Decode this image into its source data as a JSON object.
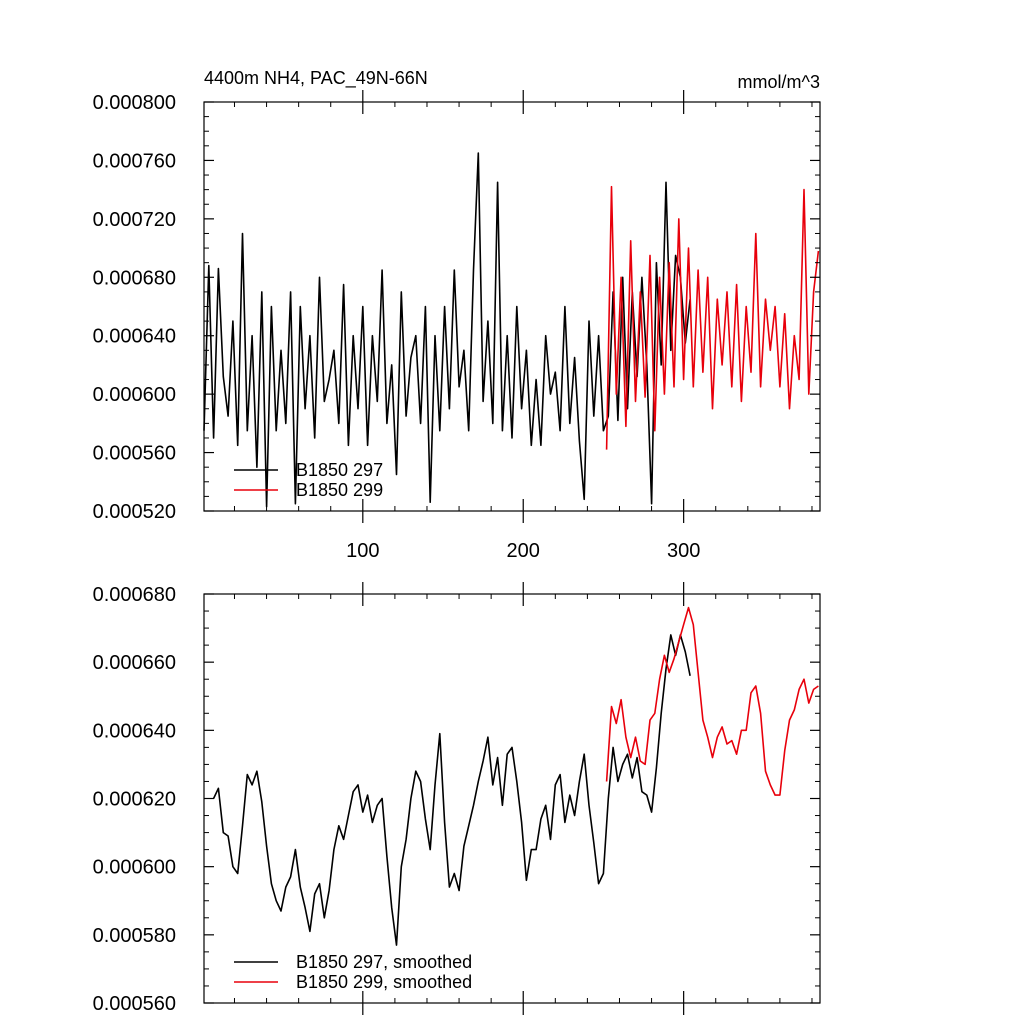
{
  "colors": {
    "black": "#000000",
    "red": "#e8000b",
    "background": "#ffffff"
  },
  "chart_data": [
    {
      "type": "line",
      "title": "4400m NH4, PAC_49N-66N",
      "units": "mmol/m^3",
      "xlabel": "",
      "ylabel": "",
      "xlim": [
        1,
        385
      ],
      "ylim": [
        0.00052,
        0.0008
      ],
      "xticks": [
        100,
        200,
        300
      ],
      "xtick_labels": [
        "100",
        "200",
        "300"
      ],
      "yticks": [
        0.00052,
        0.00056,
        0.0006,
        0.00064,
        0.00068,
        0.00072,
        0.00076,
        0.0008
      ],
      "ytick_labels": [
        "0.000520",
        "0.000560",
        "0.000600",
        "0.000640",
        "0.000680",
        "0.000720",
        "0.000760",
        "0.000800"
      ],
      "legend_position": "bottom-left",
      "series": [
        {
          "name": "B1850 297",
          "color": "#000000",
          "x": [
            1,
            4,
            7,
            10,
            13,
            16,
            19,
            22,
            25,
            28,
            31,
            34,
            37,
            40,
            43,
            46,
            49,
            52,
            55,
            58,
            61,
            64,
            67,
            70,
            73,
            76,
            79,
            82,
            85,
            88,
            91,
            94,
            97,
            100,
            103,
            106,
            109,
            112,
            115,
            118,
            121,
            124,
            127,
            130,
            133,
            136,
            139,
            142,
            145,
            148,
            151,
            154,
            157,
            160,
            163,
            166,
            169,
            172,
            175,
            178,
            181,
            184,
            187,
            190,
            193,
            196,
            199,
            202,
            205,
            208,
            211,
            214,
            217,
            220,
            223,
            226,
            229,
            232,
            235,
            238,
            241,
            244,
            247,
            250,
            253,
            256,
            259,
            262,
            265,
            268,
            271,
            274,
            277,
            280,
            283,
            286,
            289,
            292,
            295,
            298,
            301,
            304
          ],
          "values": [
            0.000575,
            0.000688,
            0.00057,
            0.000686,
            0.000612,
            0.000585,
            0.00065,
            0.000565,
            0.00071,
            0.000575,
            0.00064,
            0.00055,
            0.00067,
            0.000523,
            0.00066,
            0.000575,
            0.00063,
            0.00058,
            0.00067,
            0.000525,
            0.00066,
            0.00059,
            0.00064,
            0.00057,
            0.00068,
            0.000595,
            0.00061,
            0.00063,
            0.00058,
            0.000675,
            0.000565,
            0.00064,
            0.00059,
            0.00066,
            0.000565,
            0.00064,
            0.000595,
            0.000685,
            0.00058,
            0.00062,
            0.000545,
            0.00067,
            0.000585,
            0.000625,
            0.00064,
            0.00058,
            0.00066,
            0.000526,
            0.00064,
            0.000575,
            0.00066,
            0.00059,
            0.000685,
            0.000605,
            0.00063,
            0.000575,
            0.000685,
            0.000765,
            0.000595,
            0.00065,
            0.00058,
            0.000745,
            0.000575,
            0.00064,
            0.00057,
            0.00066,
            0.00059,
            0.00063,
            0.000565,
            0.00061,
            0.000565,
            0.00064,
            0.0006,
            0.000615,
            0.000575,
            0.00066,
            0.00058,
            0.000625,
            0.000568,
            0.000528,
            0.00065,
            0.000585,
            0.00064,
            0.000575,
            0.000585,
            0.00067,
            0.000582,
            0.00068,
            0.00059,
            0.00067,
            0.000612,
            0.00068,
            0.00062,
            0.000525,
            0.00069,
            0.00062,
            0.000745,
            0.00063,
            0.000695,
            0.00068,
            0.000635,
            0.000665
          ]
        },
        {
          "name": "B1850 299",
          "color": "#e8000b",
          "x": [
            252,
            255,
            258,
            261,
            264,
            267,
            270,
            273,
            276,
            279,
            282,
            285,
            288,
            291,
            294,
            297,
            300,
            303,
            306,
            309,
            312,
            315,
            318,
            321,
            324,
            327,
            330,
            333,
            336,
            339,
            342,
            345,
            348,
            351,
            354,
            357,
            360,
            363,
            366,
            369,
            372,
            375,
            378,
            381,
            384
          ],
          "values": [
            0.000562,
            0.000742,
            0.0006,
            0.00068,
            0.000578,
            0.000705,
            0.000595,
            0.00067,
            0.000598,
            0.000695,
            0.000575,
            0.00068,
            0.0006,
            0.00069,
            0.000605,
            0.00072,
            0.00061,
            0.0007,
            0.000605,
            0.000685,
            0.000615,
            0.00068,
            0.00059,
            0.000665,
            0.00062,
            0.00067,
            0.000605,
            0.000675,
            0.000595,
            0.00066,
            0.000615,
            0.00071,
            0.000605,
            0.000665,
            0.00063,
            0.00066,
            0.000605,
            0.000655,
            0.00059,
            0.00064,
            0.00061,
            0.00074,
            0.0006,
            0.00067,
            0.000698
          ]
        }
      ]
    },
    {
      "type": "line",
      "title": "",
      "xlabel": "",
      "ylabel": "",
      "xlim": [
        1,
        385
      ],
      "ylim": [
        0.00056,
        0.00068
      ],
      "xticks": [
        100,
        200,
        300
      ],
      "yticks": [
        0.00056,
        0.00058,
        0.0006,
        0.00062,
        0.00064,
        0.00066,
        0.00068
      ],
      "ytick_labels": [
        "0.000560",
        "0.000580",
        "0.000600",
        "0.000620",
        "0.000640",
        "0.000660",
        "0.000680"
      ],
      "legend_position": "bottom-left",
      "series": [
        {
          "name": "B1850 297, smoothed",
          "color": "#000000",
          "x": [
            7,
            10,
            13,
            16,
            19,
            22,
            25,
            28,
            31,
            34,
            37,
            40,
            43,
            46,
            49,
            52,
            55,
            58,
            61,
            64,
            67,
            70,
            73,
            76,
            79,
            82,
            85,
            88,
            91,
            94,
            97,
            100,
            103,
            106,
            109,
            112,
            115,
            118,
            121,
            124,
            127,
            130,
            133,
            136,
            139,
            142,
            145,
            148,
            151,
            154,
            157,
            160,
            163,
            166,
            169,
            172,
            175,
            178,
            181,
            184,
            187,
            190,
            193,
            196,
            199,
            202,
            205,
            208,
            211,
            214,
            217,
            220,
            223,
            226,
            229,
            232,
            235,
            238,
            241,
            244,
            247,
            250,
            253,
            256,
            259,
            262,
            265,
            268,
            271,
            274,
            277,
            280,
            283,
            286,
            289,
            292,
            295,
            298,
            301,
            304
          ],
          "values": [
            0.00062,
            0.000623,
            0.00061,
            0.000609,
            0.0006,
            0.000598,
            0.000612,
            0.000627,
            0.000624,
            0.000628,
            0.000619,
            0.000606,
            0.000595,
            0.00059,
            0.000587,
            0.000594,
            0.000597,
            0.000605,
            0.000594,
            0.000588,
            0.000581,
            0.000592,
            0.000595,
            0.000585,
            0.000593,
            0.000605,
            0.000612,
            0.000608,
            0.000615,
            0.000622,
            0.000624,
            0.000616,
            0.000621,
            0.000613,
            0.000618,
            0.00062,
            0.000603,
            0.000588,
            0.000577,
            0.0006,
            0.000608,
            0.00062,
            0.000628,
            0.000625,
            0.000614,
            0.000605,
            0.000624,
            0.000639,
            0.000613,
            0.000594,
            0.000598,
            0.000593,
            0.000606,
            0.000612,
            0.000618,
            0.000625,
            0.000631,
            0.000638,
            0.000624,
            0.000632,
            0.000618,
            0.000633,
            0.000635,
            0.000625,
            0.000613,
            0.000596,
            0.000605,
            0.000605,
            0.000614,
            0.000618,
            0.000608,
            0.000624,
            0.000627,
            0.000613,
            0.000621,
            0.000615,
            0.000625,
            0.000633,
            0.000618,
            0.000607,
            0.000595,
            0.000598,
            0.00062,
            0.000635,
            0.000625,
            0.00063,
            0.000633,
            0.000626,
            0.000632,
            0.000622,
            0.000621,
            0.000616,
            0.000629,
            0.000645,
            0.000658,
            0.000668,
            0.000662,
            0.000668,
            0.000663,
            0.000656
          ]
        },
        {
          "name": "B1850 299, smoothed",
          "color": "#e8000b",
          "x": [
            252,
            255,
            258,
            261,
            264,
            267,
            270,
            273,
            276,
            279,
            282,
            285,
            288,
            291,
            294,
            297,
            300,
            303,
            306,
            309,
            312,
            315,
            318,
            321,
            324,
            327,
            330,
            333,
            336,
            339,
            342,
            345,
            348,
            351,
            354,
            357,
            360,
            363,
            366,
            369,
            372,
            375,
            378,
            381,
            384
          ],
          "values": [
            0.000625,
            0.000647,
            0.000642,
            0.000649,
            0.000638,
            0.000632,
            0.000638,
            0.000631,
            0.00063,
            0.000643,
            0.000645,
            0.000655,
            0.000662,
            0.000657,
            0.000661,
            0.000666,
            0.000671,
            0.000676,
            0.000671,
            0.000657,
            0.000643,
            0.000638,
            0.000632,
            0.000638,
            0.000641,
            0.000636,
            0.000637,
            0.000633,
            0.00064,
            0.00064,
            0.000651,
            0.000653,
            0.000645,
            0.000628,
            0.000624,
            0.000621,
            0.000621,
            0.000634,
            0.000643,
            0.000646,
            0.000652,
            0.000655,
            0.000648,
            0.000652,
            0.000653
          ]
        }
      ]
    }
  ]
}
